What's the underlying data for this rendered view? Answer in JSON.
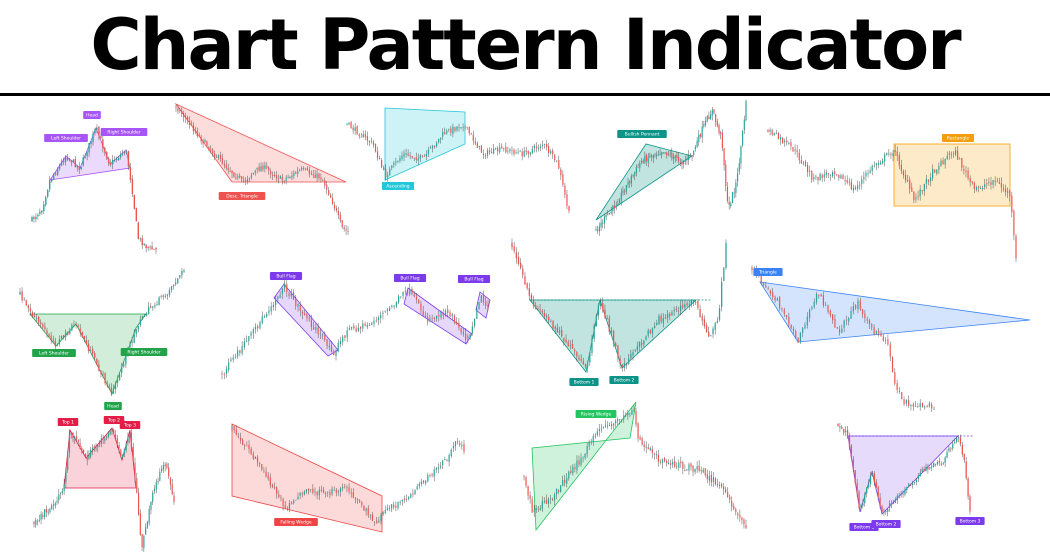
{
  "page": {
    "title": "Chart Pattern Indicator"
  },
  "colors": {
    "bull": "#26a69a",
    "bear": "#ef5350",
    "bullBright": "#22c55e",
    "bearBright": "#e11d48"
  },
  "chart_data": [
    {
      "type": "line",
      "pattern": "head-and-shoulders",
      "color": "#a855f7",
      "labels": [
        "Left Shoulder",
        "Head",
        "Right Shoulder"
      ]
    },
    {
      "type": "line",
      "pattern": "descending-triangle",
      "color": "#ef5350",
      "labels": [
        "Desc. Triangle"
      ]
    },
    {
      "type": "line",
      "pattern": "ascending-channel",
      "color": "#22c7d9",
      "labels": [
        "Ascending"
      ]
    },
    {
      "type": "line",
      "pattern": "bullish-pennant",
      "color": "#0d9488",
      "labels": [
        "Bullish Pennant"
      ]
    },
    {
      "type": "line",
      "pattern": "rectangle",
      "color": "#f59e0b",
      "labels": [
        "Rectangle"
      ]
    },
    {
      "type": "line",
      "pattern": "inverse-head-and-shoulders",
      "color": "#22a34a",
      "labels": [
        "Left Shoulder",
        "Head",
        "Right Shoulder"
      ]
    },
    {
      "type": "line",
      "pattern": "bull-flags",
      "color": "#7c3aed",
      "labels": [
        "Bull Flag",
        "Bull Flag",
        "Bull Flag"
      ]
    },
    {
      "type": "line",
      "pattern": "double-bottom",
      "color": "#0d9488",
      "labels": [
        "Bottom 1",
        "Bottom 2"
      ]
    },
    {
      "type": "line",
      "pattern": "descending-triangle-blue",
      "color": "#3b82f6",
      "labels": [
        "Triangle"
      ]
    },
    {
      "type": "line",
      "pattern": "triple-top",
      "color": "#e11d48",
      "labels": [
        "Top 1",
        "Top 2",
        "Top 3"
      ]
    },
    {
      "type": "line",
      "pattern": "falling-wedge",
      "color": "#ef4444",
      "labels": [
        "Falling Wedge"
      ]
    },
    {
      "type": "line",
      "pattern": "rising-wedge",
      "color": "#22c55e",
      "labels": [
        "Rising Wedge"
      ]
    },
    {
      "type": "line",
      "pattern": "triple-bottom",
      "color": "#7c3aed",
      "labels": [
        "Bottom 1",
        "Bottom 2",
        "Bottom 3"
      ]
    }
  ]
}
